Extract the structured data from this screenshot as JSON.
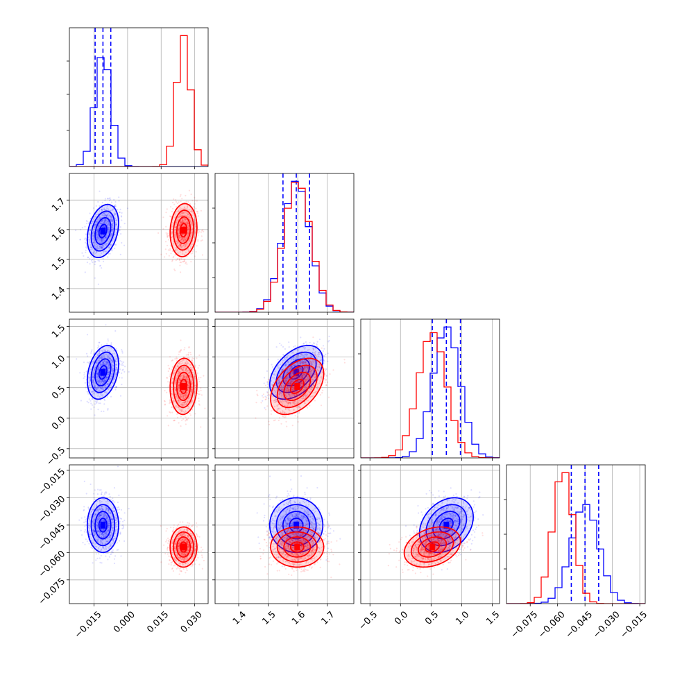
{
  "chart_data": {
    "type": "corner",
    "parameters": [
      {
        "id": "p0",
        "label": "",
        "range": [
          -0.026,
          0.036
        ],
        "ticks": [
          -0.015,
          0.0,
          0.015,
          0.03
        ],
        "tick_labels": [
          "−0.015",
          "0.000",
          "0.015",
          "0.030"
        ]
      },
      {
        "id": "p1",
        "label": "",
        "range": [
          1.32,
          1.79
        ],
        "ticks": [
          1.4,
          1.5,
          1.6,
          1.7
        ],
        "tick_labels": [
          "1.4",
          "1.5",
          "1.6",
          "1.7"
        ]
      },
      {
        "id": "p2",
        "label": "",
        "range": [
          -0.65,
          1.62
        ],
        "ticks": [
          -0.5,
          0.0,
          0.5,
          1.0,
          1.5
        ],
        "tick_labels": [
          "−0.5",
          "0.0",
          "0.5",
          "1.0",
          "1.5"
        ]
      },
      {
        "id": "p3",
        "label": "",
        "range": [
          -0.088,
          -0.012
        ],
        "ticks": [
          -0.075,
          -0.06,
          -0.045,
          -0.03,
          -0.015
        ],
        "tick_labels": [
          "−0.075",
          "−0.060",
          "−0.045",
          "−0.030",
          "−0.015"
        ]
      }
    ],
    "series": [
      {
        "color": "#0000ff",
        "means": [
          -0.011,
          1.595,
          0.75,
          -0.045
        ],
        "sigmas": [
          0.0035,
          0.045,
          0.22,
          0.0075
        ],
        "correlations": {
          "p0-p1": 0.3,
          "p0-p2": 0.3,
          "p0-p3": 0.0,
          "p1-p2": 0.45,
          "p1-p3": 0.0,
          "p2-p3": 0.3
        },
        "quantile_lines": {
          "p0": [
            -0.0145,
            -0.011,
            -0.0075
          ],
          "p1": [
            1.55,
            1.595,
            1.64
          ],
          "p2": [
            0.52,
            0.75,
            0.98
          ],
          "p3": [
            -0.0525,
            -0.045,
            -0.0375
          ]
        }
      },
      {
        "color": "#ff0000",
        "means": [
          0.025,
          1.598,
          0.52,
          -0.057
        ],
        "sigmas": [
          0.003,
          0.045,
          0.23,
          0.0055
        ],
        "correlations": {
          "p0-p1": 0.1,
          "p0-p2": 0.05,
          "p0-p3": 0.0,
          "p1-p2": 0.45,
          "p1-p3": 0.0,
          "p2-p3": 0.3
        }
      }
    ],
    "histogram_bins": 20,
    "contour_levels_sigma": [
      0.5,
      1.0,
      1.5,
      2.0
    ],
    "grid": true
  }
}
